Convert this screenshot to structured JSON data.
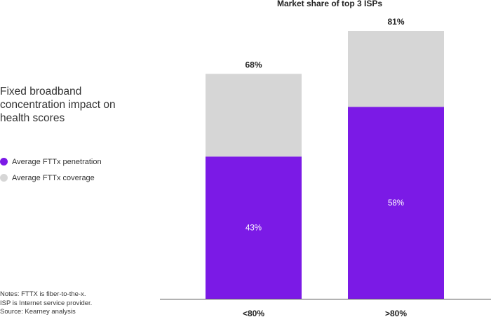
{
  "panel": {
    "title": "Fixed broadband concentration impact on health scores",
    "notes_line1": "Notes: FTTX is fiber-to-the-x.",
    "notes_line2": "ISP is Internet service provider.",
    "source": "Source: Kearney analysis"
  },
  "legend": [
    {
      "label": "Average FTTx penetration",
      "color": "#7B1AE6"
    },
    {
      "label": "Average FTTx coverage",
      "color": "#D6D6D6"
    }
  ],
  "chart_data": {
    "type": "bar",
    "stacked": true,
    "title": "Market share of top 3 ISPs",
    "categories": [
      "<80%",
      ">80%"
    ],
    "series": [
      {
        "name": "Average FTTx penetration",
        "values": [
          43,
          58
        ],
        "labels": [
          "43%",
          "58%"
        ],
        "color": "#7B1AE6"
      },
      {
        "name": "Average FTTx coverage",
        "values": [
          25,
          23
        ],
        "color": "#D6D6D6"
      }
    ],
    "totals": [
      68,
      81
    ],
    "total_labels": [
      "68%",
      "81%"
    ],
    "ylim": [
      0,
      81
    ],
    "grid": false,
    "legend": "left"
  }
}
